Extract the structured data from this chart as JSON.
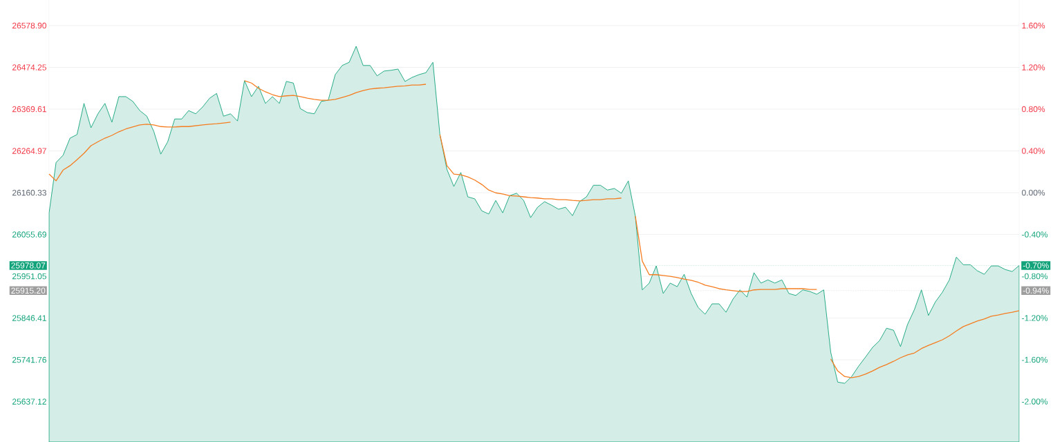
{
  "chart_data": {
    "type": "area",
    "categories": [
      null,
      null,
      null,
      null,
      null,
      null,
      null,
      null,
      null,
      null,
      null,
      null,
      null,
      null,
      null,
      null,
      null,
      null,
      null,
      null,
      null,
      null,
      null,
      null,
      null,
      null,
      null,
      null,
      null,
      null,
      null,
      null,
      null,
      null,
      null,
      null,
      null,
      null,
      null,
      null,
      null,
      null,
      null,
      null,
      null,
      null,
      null,
      null,
      null,
      null,
      null,
      null,
      null,
      null,
      null,
      null,
      null,
      null,
      null,
      null,
      null,
      null,
      null,
      null,
      null,
      null,
      null,
      null,
      null,
      null,
      null,
      null,
      null,
      null,
      null,
      null,
      null,
      null,
      null,
      null,
      null,
      null,
      null,
      null,
      null,
      null,
      null,
      null,
      null,
      null,
      null,
      null,
      null,
      null,
      null,
      null,
      null,
      null,
      null,
      null,
      null,
      null,
      null,
      null,
      null,
      null,
      null,
      null,
      null,
      null,
      null,
      null,
      null,
      null,
      null,
      null,
      null,
      null,
      null,
      null,
      null,
      null,
      null,
      null,
      null,
      null,
      null,
      null,
      null,
      null,
      null,
      null,
      null,
      null,
      null,
      null,
      null,
      null,
      null,
      null
    ],
    "series": [
      {
        "type": "area",
        "color": "#12a37a",
        "values": [
          26110,
          26236,
          26254,
          26297,
          26306,
          26384,
          26323,
          26358,
          26384,
          26337,
          26401,
          26401,
          26389,
          26366,
          26352,
          26314,
          26257,
          26288,
          26345,
          26345,
          26366,
          26358,
          26375,
          26397,
          26409,
          26352,
          26358,
          26340,
          26441,
          26401,
          26427,
          26384,
          26401,
          26384,
          26439,
          26435,
          26371,
          26361,
          26358,
          26389,
          26392,
          26456,
          26479,
          26487,
          26527,
          26479,
          26479,
          26453,
          26465,
          26467,
          26470,
          26439,
          26449,
          26456,
          26461,
          26487,
          26306,
          26219,
          26176,
          26211,
          26150,
          26145,
          26115,
          26107,
          26141,
          26110,
          26153,
          26159,
          26141,
          26098,
          26124,
          26138,
          26129,
          26119,
          26124,
          26103,
          26138,
          26150,
          26179,
          26179,
          26167,
          26171,
          26159,
          26190,
          26102,
          25917,
          25934,
          25977,
          25908,
          25934,
          25925,
          25956,
          25908,
          25873,
          25856,
          25882,
          25882,
          25861,
          25894,
          25917,
          25899,
          25960,
          25934,
          25942,
          25934,
          25942,
          25908,
          25903,
          25917,
          25913,
          25906,
          25917,
          25761,
          25686,
          25683,
          25700,
          25726,
          25749,
          25773,
          25790,
          25821,
          25816,
          25775,
          25830,
          25868,
          25917,
          25853,
          25887,
          25911,
          25942,
          25999,
          25980,
          25980,
          25965,
          25956,
          25977,
          25977,
          25968,
          25963,
          25978
        ]
      },
      {
        "type": "line",
        "color": "#f57c1f",
        "values": [
          26207,
          26190,
          26217,
          26228,
          26243,
          26259,
          26278,
          26288,
          26297,
          26304,
          26313,
          26320,
          26325,
          26330,
          26332,
          26330,
          26326,
          26325,
          26325,
          26326,
          26326,
          26328,
          26330,
          26332,
          26333,
          26335,
          26337,
          null,
          26441,
          26435,
          26422,
          26413,
          26406,
          26401,
          26403,
          26404,
          26401,
          26397,
          26394,
          26392,
          26392,
          26394,
          26399,
          26404,
          26411,
          26416,
          26420,
          26422,
          26423,
          26425,
          26427,
          26428,
          26430,
          26430,
          26432,
          null,
          26306,
          26228,
          26207,
          26205,
          26200,
          26192,
          26181,
          26167,
          26160,
          26157,
          26153,
          26152,
          26150,
          26148,
          26147,
          26145,
          26145,
          26143,
          26143,
          26141,
          26140,
          26141,
          26143,
          26143,
          26145,
          26145,
          26147,
          null,
          26102,
          25989,
          25955,
          25955,
          25953,
          25951,
          25948,
          25944,
          25941,
          25936,
          25929,
          25925,
          25920,
          25917,
          25915,
          25913,
          25913,
          25917,
          25918,
          25918,
          25918,
          25920,
          25920,
          25920,
          25920,
          25918,
          25918,
          null,
          25744,
          25714,
          25700,
          25697,
          25700,
          25706,
          25714,
          25723,
          25730,
          25738,
          25747,
          25754,
          25759,
          25770,
          25778,
          25785,
          25792,
          25802,
          25814,
          25825,
          25832,
          25839,
          25844,
          25851,
          25854,
          25858,
          25861,
          25865
        ]
      }
    ],
    "ylim": [
      25536,
      26643
    ],
    "yticks": [
      {
        "value": 25637.12,
        "label": "25637.12"
      },
      {
        "value": 25741.76,
        "label": "25741.76"
      },
      {
        "value": 25846.41,
        "label": "25846.41"
      },
      {
        "value": 25951.05,
        "label": "25951.05"
      },
      {
        "value": 26055.69,
        "label": "26055.69"
      },
      {
        "value": 26160.33,
        "label": "26160.33"
      },
      {
        "value": 26264.97,
        "label": "26264.97"
      },
      {
        "value": 26369.61,
        "label": "26369.61"
      },
      {
        "value": 26474.25,
        "label": "26474.25"
      },
      {
        "value": 26578.9,
        "label": "26578.90"
      }
    ],
    "y2lim": [
      -2.387,
      1.845
    ],
    "y2ticks": [
      {
        "value": -2.0,
        "label": "-2.00%"
      },
      {
        "value": -1.6,
        "label": "-1.60%"
      },
      {
        "value": -1.2,
        "label": "-1.20%"
      },
      {
        "value": -0.8,
        "label": "-0.80%"
      },
      {
        "value": -0.4,
        "label": "-0.40%"
      },
      {
        "value": 0,
        "label": "0.00%"
      },
      {
        "value": 0.4,
        "label": "0.40%"
      },
      {
        "value": 0.8,
        "label": "0.80%"
      },
      {
        "value": 1.2,
        "label": "1.20%"
      },
      {
        "value": 1.6,
        "label": "1.60%"
      }
    ],
    "ref_lines": [
      {
        "axis": "y",
        "value": 25978.07,
        "label": "25978.07",
        "color": "#12a37a",
        "line_style": "dotted"
      },
      {
        "axis": "y",
        "value": 25915.2,
        "label": "25915.20",
        "color": "#9e9e9e",
        "line_style": "dotted"
      }
    ],
    "annotations": [
      "-0.70%",
      "-0.94%"
    ],
    "grid": "y"
  }
}
